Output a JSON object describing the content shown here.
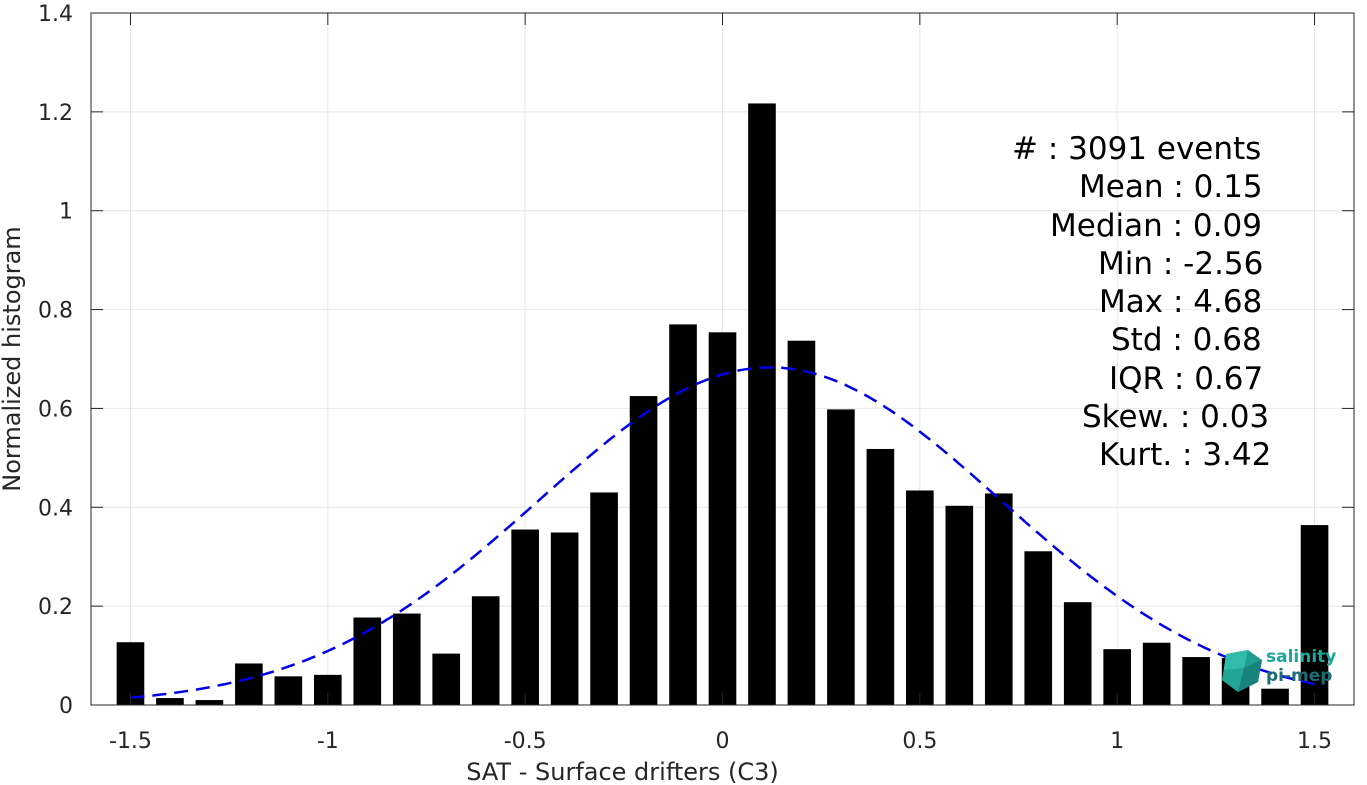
{
  "chart_data": {
    "type": "bar",
    "xlabel": "SAT - Surface drifters (C3)",
    "ylabel": "Normalized histogram",
    "xlim": [
      -1.6,
      1.6
    ],
    "ylim": [
      0,
      1.4
    ],
    "xticks": [
      -1.5,
      -1,
      -0.5,
      0,
      0.5,
      1,
      1.5
    ],
    "xtick_labels": [
      "-1.5",
      "-1",
      "-0.5",
      "0",
      "0.5",
      "1",
      "1.5"
    ],
    "yticks": [
      0,
      0.2,
      0.4,
      0.6,
      0.8,
      1,
      1.2,
      1.4
    ],
    "ytick_labels": [
      "0",
      "0.2",
      "0.4",
      "0.6",
      "0.8",
      "1",
      "1.2",
      "1.4"
    ],
    "grid": true,
    "bar_color": "#000000",
    "fit_color": "#0000e6",
    "bar_centers": [
      -1.5,
      -1.4,
      -1.3,
      -1.2,
      -1.1,
      -1.0,
      -0.9,
      -0.8,
      -0.7,
      -0.6,
      -0.5,
      -0.4,
      -0.3,
      -0.2,
      -0.1,
      0.0,
      0.1,
      0.2,
      0.3,
      0.4,
      0.5,
      0.6,
      0.7,
      0.8,
      0.9,
      1.0,
      1.1,
      1.2,
      1.3,
      1.4,
      1.5
    ],
    "values": [
      0.127,
      0.014,
      0.01,
      0.084,
      0.058,
      0.061,
      0.177,
      0.185,
      0.104,
      0.22,
      0.355,
      0.349,
      0.43,
      0.625,
      0.77,
      0.754,
      1.217,
      0.737,
      0.598,
      0.518,
      0.434,
      0.403,
      0.428,
      0.311,
      0.208,
      0.113,
      0.126,
      0.097,
      0.095,
      0.033,
      0.364
    ],
    "fit": {
      "type": "normal",
      "mean": 0.12,
      "std": 0.585,
      "x_range": [
        -1.5,
        1.5
      ]
    },
    "stats": {
      "count": "#  : 3091 events",
      "mean": "Mean : 0.15",
      "median": "Median : 0.09",
      "min": "Min : -2.56",
      "max": "Max : 4.68",
      "std": "Std : 0.68",
      "iqr": "IQR : 0.67",
      "skew": "Skew. : 0.03",
      "kurt": "Kurt. : 3.42"
    }
  },
  "logo": {
    "line1": "salinity",
    "line2": "pi-mep",
    "color1": "#19a89a",
    "color2": "#1d6e73"
  }
}
